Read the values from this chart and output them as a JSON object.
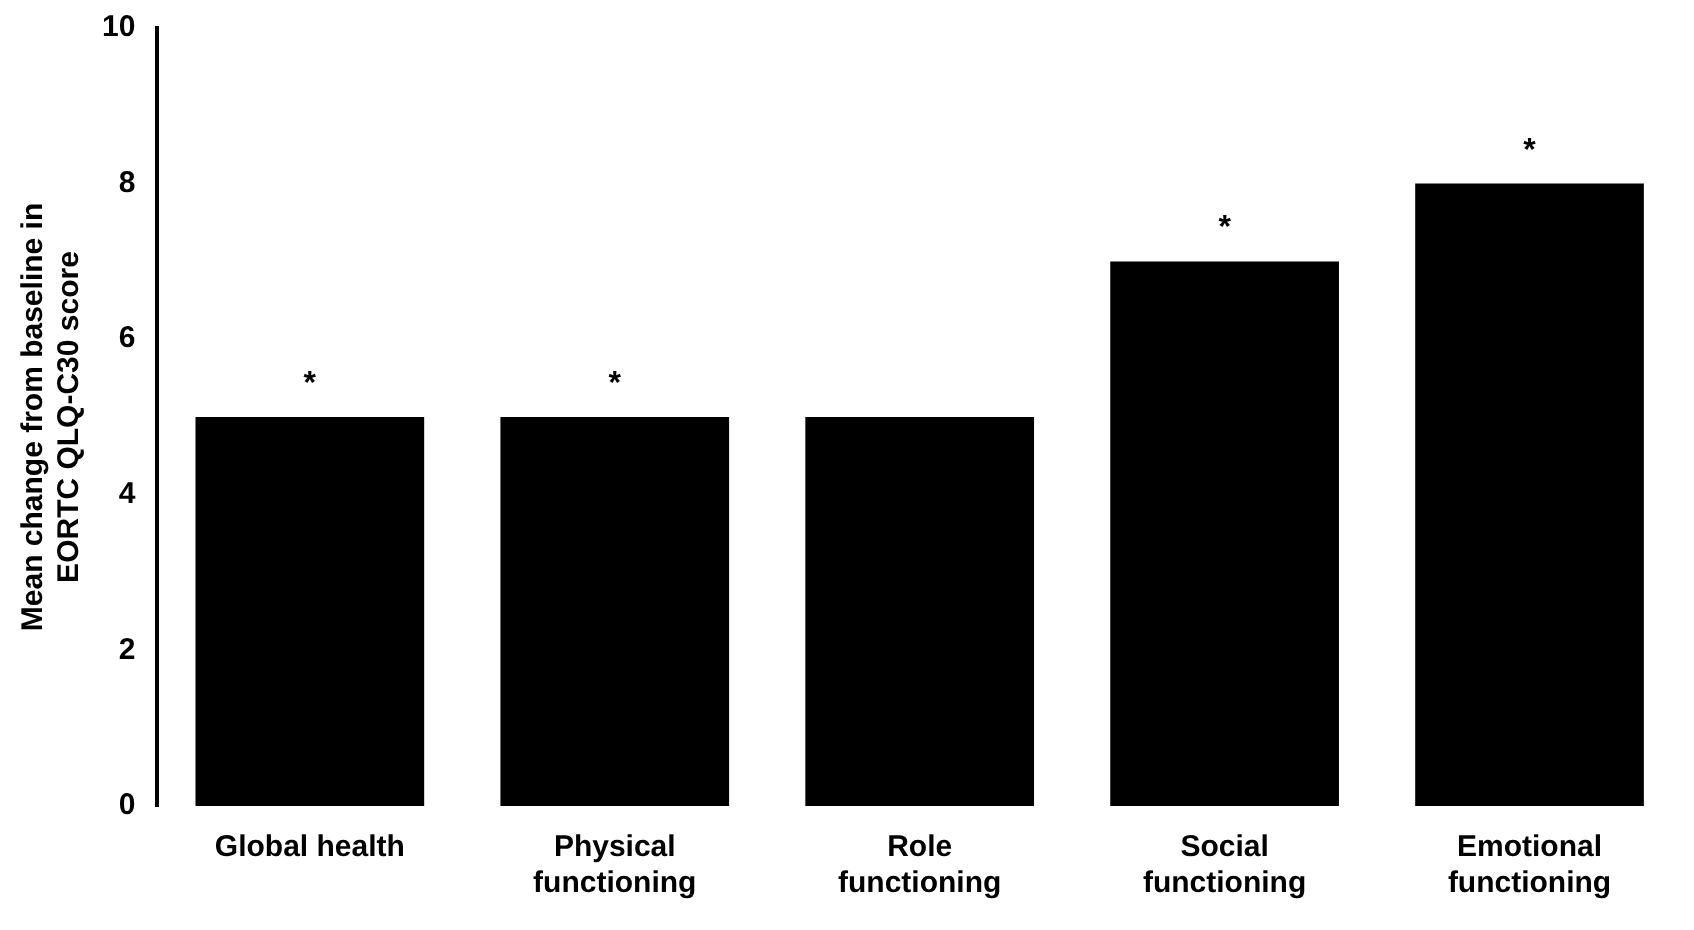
{
  "chart_data": {
    "type": "bar",
    "ylabel": "Mean change from baseline in EORTC QLQ-C30 score",
    "categories": [
      "Global health",
      "Physical functioning",
      "Role functioning",
      "Social functioning",
      "Emotional functioning"
    ],
    "values": [
      5,
      5,
      5,
      7,
      8
    ],
    "color": "#000000",
    "ylim": [
      0,
      10
    ],
    "yticks": [
      0,
      2,
      4,
      6,
      8,
      10
    ],
    "grid": false,
    "legend": false,
    "annotations": [
      {
        "text": "*",
        "x": "Global health",
        "y": 5
      },
      {
        "text": "*",
        "x": "Physical functioning",
        "y": 5
      },
      {
        "text": "*",
        "x": "Social functioning",
        "y": 7
      },
      {
        "text": "*",
        "x": "Emotional functioning",
        "y": 8
      }
    ]
  }
}
